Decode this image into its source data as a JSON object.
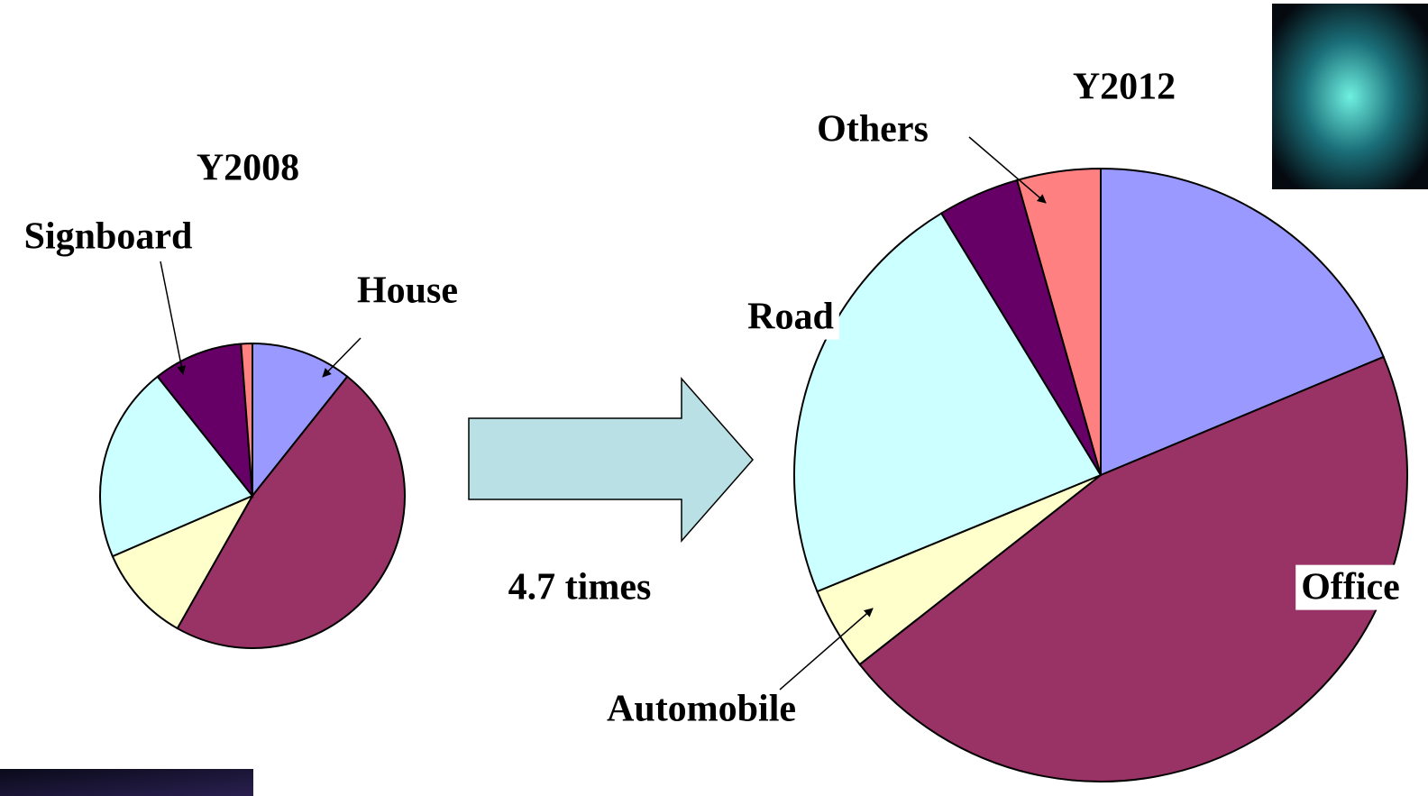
{
  "chart_data": [
    {
      "type": "pie",
      "title": "Y2008",
      "categories": [
        "House",
        null,
        null,
        null,
        "Signboard",
        null
      ],
      "values": [
        10.7,
        47.5,
        10.3,
        20.8,
        9.5,
        1.2
      ],
      "colors": [
        "#9999ff",
        "#993366",
        "#ffffcc",
        "#ccffff",
        "#660066",
        "#ff8080"
      ]
    },
    {
      "type": "pie",
      "title": "Y2012",
      "categories": [
        null,
        "Office",
        "Automobile",
        "Road",
        null,
        "Others"
      ],
      "values": [
        18.7,
        45.7,
        4.4,
        22.5,
        4.3,
        4.4
      ],
      "colors": [
        "#9999ff",
        "#993366",
        "#ffffcc",
        "#ccffff",
        "#660066",
        "#ff8080"
      ]
    }
  ],
  "annotation": "4.7 times"
}
